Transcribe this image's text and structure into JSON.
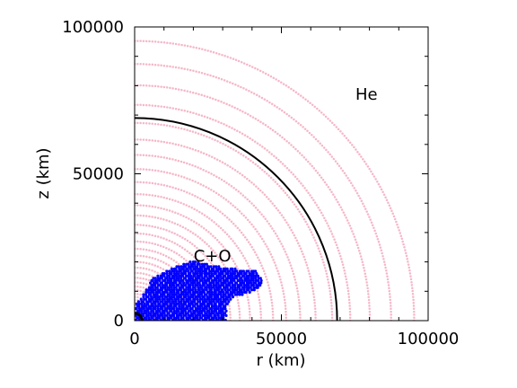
{
  "chart_data": {
    "type": "scatter",
    "xlabel": "r (km)",
    "ylabel": "z (km)",
    "xlim": [
      0,
      100000
    ],
    "ylim": [
      0,
      100000
    ],
    "xticks": [
      0,
      50000,
      100000
    ],
    "yticks": [
      0,
      50000,
      100000
    ],
    "xtick_labels": [
      "0",
      "50000",
      "100000"
    ],
    "ytick_labels": [
      "0",
      "50000",
      "100000"
    ],
    "grid": false,
    "annotations": [
      {
        "text": "He",
        "x": 79000,
        "y": 77000
      },
      {
        "text": "C+O",
        "x": 26500,
        "y": 22000
      }
    ],
    "series": [
      {
        "kind": "particles",
        "color": "#f5b7c8",
        "spacing": "concentric shells, denser toward the centre",
        "r_max": 100000
      },
      {
        "kind": "particles",
        "color": "#0000ff",
        "region": "plume anchored at origin, extending to r ≈ 43000, z ≈ 20000"
      },
      {
        "kind": "arc",
        "color": "#000000",
        "radius": 69000
      },
      {
        "kind": "arc",
        "color": "#000000",
        "radius": 2500
      }
    ]
  }
}
